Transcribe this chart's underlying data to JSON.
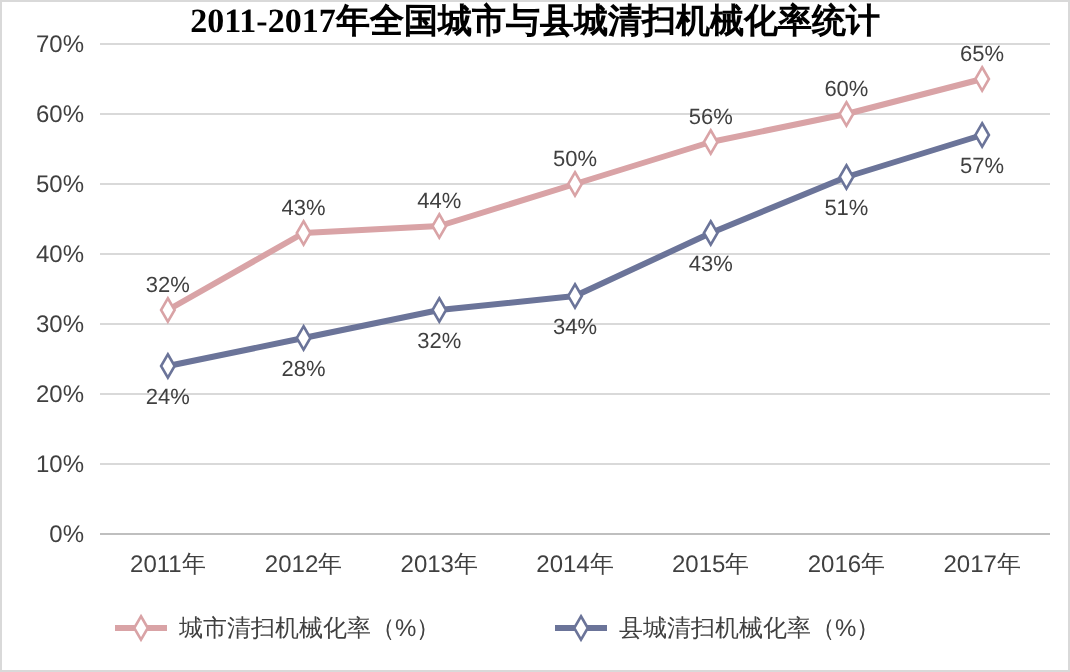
{
  "chart_data": {
    "type": "line",
    "title": "2011-2017年全国城市与县城清扫机械化率统计",
    "categories": [
      "2011年",
      "2012年",
      "2013年",
      "2014年",
      "2015年",
      "2016年",
      "2017年"
    ],
    "series": [
      {
        "name": "城市清扫机械化率（%）",
        "color": "#d9a3a6",
        "values": [
          32,
          43,
          44,
          50,
          56,
          60,
          65
        ],
        "value_labels": [
          "32%",
          "43%",
          "44%",
          "50%",
          "56%",
          "60%",
          "65%"
        ]
      },
      {
        "name": "县城清扫机械化率（%）",
        "color": "#6b7499",
        "values": [
          24,
          28,
          32,
          34,
          43,
          51,
          57
        ],
        "value_labels": [
          "24%",
          "28%",
          "32%",
          "34%",
          "43%",
          "51%",
          "57%"
        ]
      }
    ],
    "ylim": [
      0,
      70
    ],
    "yticks": [
      {
        "value": 0,
        "label": "0%"
      },
      {
        "value": 10,
        "label": "10%"
      },
      {
        "value": 20,
        "label": "20%"
      },
      {
        "value": 30,
        "label": "30%"
      },
      {
        "value": 40,
        "label": "40%"
      },
      {
        "value": 50,
        "label": "50%"
      },
      {
        "value": 60,
        "label": "60%"
      },
      {
        "value": 70,
        "label": "70%"
      }
    ],
    "grid": "y",
    "legend": "bottom",
    "marker": "diamond",
    "line_style": "solid"
  }
}
